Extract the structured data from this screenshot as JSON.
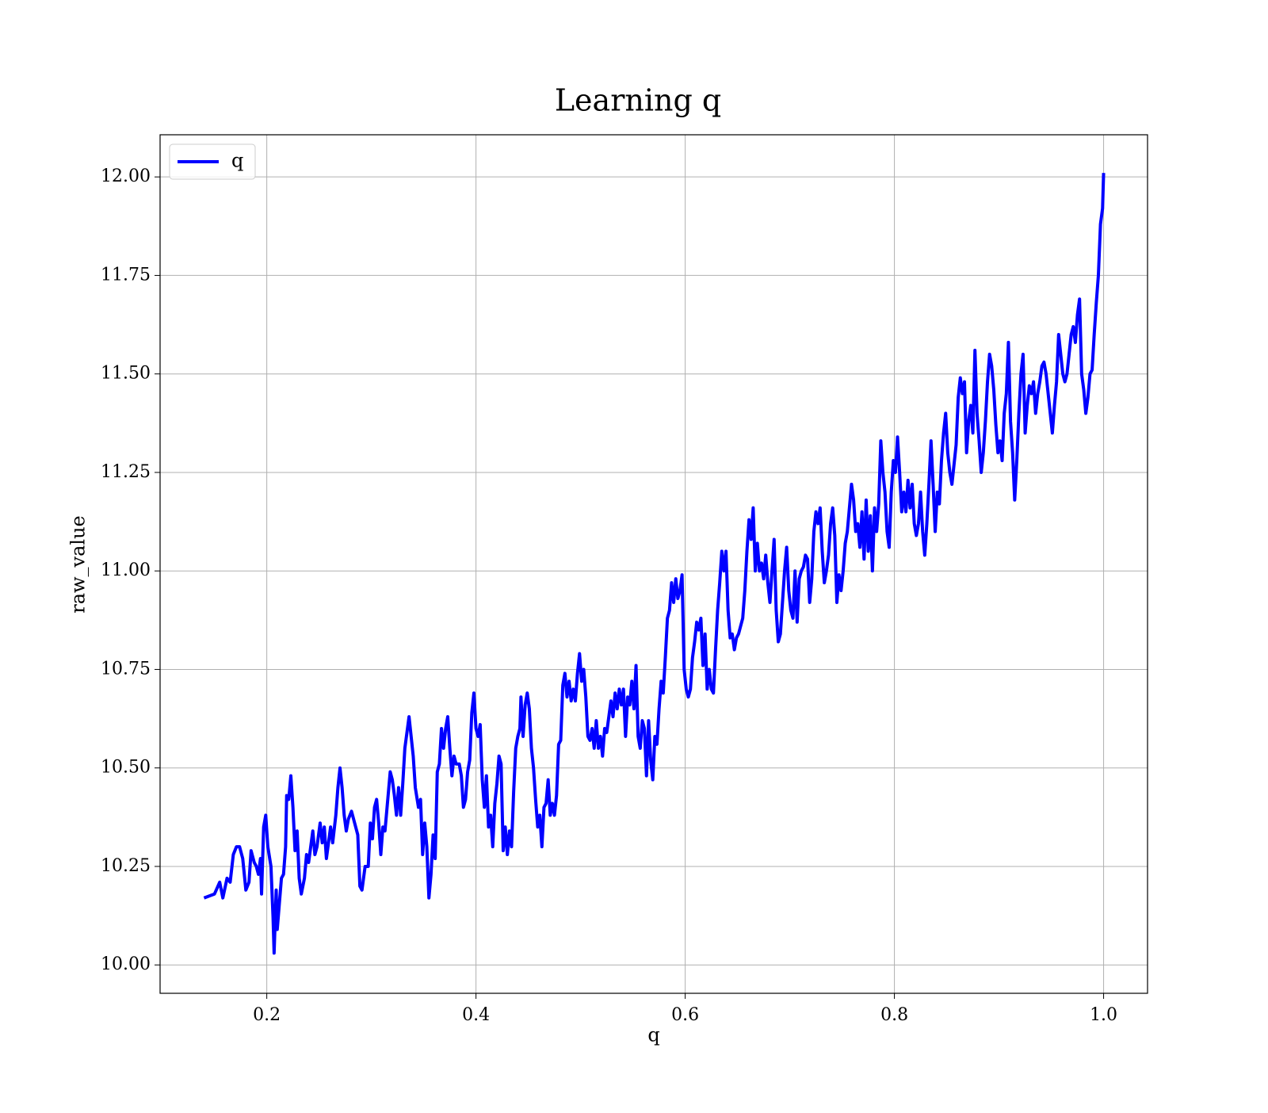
{
  "chart_data": {
    "type": "line",
    "title": "Learning q",
    "xlabel": "q",
    "ylabel": "raw_value",
    "x": [
      0.14,
      0.15,
      0.155,
      0.158,
      0.162,
      0.165,
      0.168,
      0.171,
      0.174,
      0.177,
      0.18,
      0.183,
      0.185,
      0.188,
      0.19,
      0.192,
      0.194,
      0.195,
      0.197,
      0.199,
      0.201,
      0.204,
      0.206,
      0.207,
      0.209,
      0.21,
      0.214,
      0.216,
      0.218,
      0.219,
      0.221,
      0.223,
      0.225,
      0.227,
      0.229,
      0.231,
      0.233,
      0.236,
      0.238,
      0.24,
      0.242,
      0.244,
      0.246,
      0.248,
      0.251,
      0.253,
      0.255,
      0.257,
      0.259,
      0.261,
      0.263,
      0.266,
      0.268,
      0.27,
      0.272,
      0.274,
      0.276,
      0.278,
      0.281,
      0.284,
      0.287,
      0.289,
      0.291,
      0.294,
      0.297,
      0.299,
      0.301,
      0.303,
      0.305,
      0.307,
      0.309,
      0.311,
      0.313,
      0.315,
      0.318,
      0.32,
      0.322,
      0.324,
      0.326,
      0.328,
      0.33,
      0.332,
      0.334,
      0.336,
      0.338,
      0.34,
      0.342,
      0.345,
      0.347,
      0.349,
      0.351,
      0.353,
      0.355,
      0.357,
      0.359,
      0.361,
      0.363,
      0.365,
      0.367,
      0.369,
      0.371,
      0.373,
      0.375,
      0.377,
      0.379,
      0.381,
      0.384,
      0.386,
      0.388,
      0.39,
      0.392,
      0.394,
      0.396,
      0.398,
      0.4,
      0.402,
      0.404,
      0.406,
      0.408,
      0.41,
      0.412,
      0.414,
      0.416,
      0.418,
      0.42,
      0.422,
      0.424,
      0.426,
      0.428,
      0.43,
      0.432,
      0.434,
      0.436,
      0.438,
      0.44,
      0.442,
      0.443,
      0.445,
      0.447,
      0.449,
      0.451,
      0.453,
      0.455,
      0.457,
      0.459,
      0.461,
      0.463,
      0.465,
      0.467,
      0.469,
      0.471,
      0.473,
      0.475,
      0.477,
      0.479,
      0.481,
      0.483,
      0.485,
      0.487,
      0.489,
      0.491,
      0.493,
      0.495,
      0.497,
      0.499,
      0.501,
      0.503,
      0.505,
      0.507,
      0.509,
      0.511,
      0.513,
      0.515,
      0.517,
      0.519,
      0.521,
      0.523,
      0.525,
      0.527,
      0.529,
      0.531,
      0.533,
      0.535,
      0.537,
      0.539,
      0.541,
      0.543,
      0.545,
      0.547,
      0.549,
      0.551,
      0.553,
      0.555,
      0.557,
      0.559,
      0.561,
      0.563,
      0.565,
      0.567,
      0.569,
      0.571,
      0.573,
      0.575,
      0.577,
      0.579,
      0.581,
      0.583,
      0.585,
      0.587,
      0.589,
      0.591,
      0.593,
      0.595,
      0.597,
      0.599,
      0.601,
      0.603,
      0.605,
      0.607,
      0.609,
      0.611,
      0.613,
      0.615,
      0.617,
      0.619,
      0.621,
      0.623,
      0.625,
      0.627,
      0.629,
      0.631,
      0.633,
      0.635,
      0.637,
      0.639,
      0.641,
      0.643,
      0.645,
      0.647,
      0.649,
      0.651,
      0.653,
      0.655,
      0.657,
      0.659,
      0.661,
      0.663,
      0.665,
      0.667,
      0.669,
      0.671,
      0.673,
      0.675,
      0.677,
      0.679,
      0.681,
      0.683,
      0.685,
      0.687,
      0.689,
      0.691,
      0.693,
      0.695,
      0.697,
      0.699,
      0.701,
      0.703,
      0.705,
      0.707,
      0.709,
      0.711,
      0.713,
      0.715,
      0.717,
      0.719,
      0.721,
      0.723,
      0.725,
      0.727,
      0.729,
      0.731,
      0.733,
      0.735,
      0.737,
      0.739,
      0.741,
      0.743,
      0.745,
      0.747,
      0.749,
      0.751,
      0.753,
      0.755,
      0.757,
      0.759,
      0.761,
      0.763,
      0.765,
      0.767,
      0.769,
      0.771,
      0.773,
      0.775,
      0.777,
      0.779,
      0.781,
      0.783,
      0.785,
      0.787,
      0.789,
      0.791,
      0.793,
      0.795,
      0.797,
      0.799,
      0.801,
      0.803,
      0.805,
      0.807,
      0.809,
      0.811,
      0.813,
      0.815,
      0.817,
      0.819,
      0.821,
      0.823,
      0.825,
      0.827,
      0.829,
      0.831,
      0.833,
      0.835,
      0.837,
      0.839,
      0.841,
      0.843,
      0.845,
      0.847,
      0.849,
      0.851,
      0.853,
      0.855,
      0.857,
      0.859,
      0.861,
      0.863,
      0.865,
      0.867,
      0.869,
      0.871,
      0.873,
      0.875,
      0.877,
      0.879,
      0.881,
      0.883,
      0.885,
      0.887,
      0.889,
      0.891,
      0.893,
      0.895,
      0.897,
      0.899,
      0.901,
      0.903,
      0.905,
      0.907,
      0.909,
      0.911,
      0.913,
      0.915,
      0.917,
      0.919,
      0.921,
      0.923,
      0.925,
      0.927,
      0.929,
      0.931,
      0.933,
      0.935,
      0.937,
      0.939,
      0.941,
      0.943,
      0.945,
      0.947,
      0.949,
      0.951,
      0.953,
      0.955,
      0.957,
      0.959,
      0.961,
      0.963,
      0.965,
      0.967,
      0.969,
      0.971,
      0.973,
      0.975,
      0.977,
      0.979,
      0.981,
      0.983,
      0.985,
      0.987,
      0.989,
      0.991,
      0.993,
      0.995,
      0.997,
      0.999,
      1.0
    ],
    "series": [
      {
        "name": "q",
        "color": "#0000ff",
        "values": [
          10.17,
          10.18,
          10.21,
          10.17,
          10.22,
          10.21,
          10.28,
          10.3,
          10.3,
          10.27,
          10.19,
          10.21,
          10.29,
          10.26,
          10.25,
          10.23,
          10.27,
          10.18,
          10.35,
          10.38,
          10.3,
          10.25,
          10.12,
          10.03,
          10.19,
          10.09,
          10.22,
          10.23,
          10.3,
          10.43,
          10.42,
          10.48,
          10.4,
          10.29,
          10.34,
          10.22,
          10.18,
          10.22,
          10.28,
          10.26,
          10.3,
          10.34,
          10.28,
          10.3,
          10.36,
          10.31,
          10.35,
          10.27,
          10.31,
          10.35,
          10.31,
          10.38,
          10.45,
          10.5,
          10.45,
          10.38,
          10.34,
          10.37,
          10.39,
          10.36,
          10.33,
          10.2,
          10.19,
          10.25,
          10.25,
          10.36,
          10.32,
          10.4,
          10.42,
          10.36,
          10.28,
          10.35,
          10.34,
          10.4,
          10.49,
          10.47,
          10.43,
          10.38,
          10.45,
          10.38,
          10.46,
          10.55,
          10.59,
          10.63,
          10.58,
          10.53,
          10.45,
          10.4,
          10.42,
          10.28,
          10.36,
          10.3,
          10.17,
          10.23,
          10.33,
          10.27,
          10.49,
          10.51,
          10.6,
          10.55,
          10.6,
          10.63,
          10.55,
          10.48,
          10.53,
          10.51,
          10.51,
          10.48,
          10.4,
          10.42,
          10.49,
          10.52,
          10.64,
          10.69,
          10.6,
          10.58,
          10.61,
          10.47,
          10.4,
          10.48,
          10.35,
          10.38,
          10.3,
          10.41,
          10.46,
          10.53,
          10.51,
          10.29,
          10.35,
          10.28,
          10.34,
          10.3,
          10.44,
          10.55,
          10.58,
          10.6,
          10.68,
          10.58,
          10.66,
          10.69,
          10.65,
          10.55,
          10.5,
          10.42,
          10.35,
          10.38,
          10.3,
          10.4,
          10.41,
          10.47,
          10.38,
          10.41,
          10.38,
          10.43,
          10.56,
          10.57,
          10.71,
          10.74,
          10.68,
          10.72,
          10.67,
          10.7,
          10.67,
          10.74,
          10.79,
          10.72,
          10.75,
          10.68,
          10.58,
          10.57,
          10.6,
          10.55,
          10.62,
          10.55,
          10.58,
          10.53,
          10.6,
          10.59,
          10.63,
          10.67,
          10.63,
          10.69,
          10.65,
          10.7,
          10.66,
          10.7,
          10.58,
          10.68,
          10.66,
          10.72,
          10.65,
          10.76,
          10.58,
          10.55,
          10.62,
          10.6,
          10.48,
          10.62,
          10.52,
          10.47,
          10.58,
          10.56,
          10.65,
          10.72,
          10.69,
          10.78,
          10.88,
          10.9,
          10.97,
          10.92,
          10.98,
          10.93,
          10.95,
          10.99,
          10.75,
          10.7,
          10.68,
          10.7,
          10.78,
          10.82,
          10.87,
          10.85,
          10.88,
          10.76,
          10.84,
          10.7,
          10.75,
          10.7,
          10.69,
          10.8,
          10.9,
          10.97,
          11.05,
          11.0,
          11.05,
          10.9,
          10.83,
          10.84,
          10.8,
          10.83,
          10.84,
          10.86,
          10.88,
          10.95,
          11.05,
          11.13,
          11.08,
          11.16,
          11.0,
          11.07,
          11.0,
          11.02,
          10.98,
          11.04,
          10.97,
          10.92,
          11.0,
          11.08,
          10.9,
          10.82,
          10.84,
          10.92,
          11.0,
          11.06,
          10.95,
          10.9,
          10.88,
          11.0,
          10.87,
          10.98,
          11.0,
          11.01,
          11.04,
          11.03,
          10.92,
          10.98,
          11.1,
          11.15,
          11.12,
          11.16,
          11.05,
          10.97,
          11.0,
          11.04,
          11.12,
          11.16,
          11.09,
          10.92,
          10.99,
          10.95,
          11.0,
          11.07,
          11.1,
          11.16,
          11.22,
          11.18,
          11.1,
          11.12,
          11.06,
          11.15,
          11.03,
          11.18,
          11.05,
          11.14,
          11.0,
          11.16,
          11.1,
          11.17,
          11.33,
          11.25,
          11.2,
          11.1,
          11.06,
          11.2,
          11.28,
          11.25,
          11.34,
          11.25,
          11.15,
          11.2,
          11.15,
          11.23,
          11.16,
          11.22,
          11.12,
          11.09,
          11.12,
          11.2,
          11.1,
          11.04,
          11.12,
          11.22,
          11.33,
          11.22,
          11.1,
          11.2,
          11.17,
          11.28,
          11.35,
          11.4,
          11.3,
          11.25,
          11.22,
          11.27,
          11.32,
          11.44,
          11.49,
          11.45,
          11.48,
          11.3,
          11.38,
          11.42,
          11.35,
          11.56,
          11.4,
          11.33,
          11.25,
          11.3,
          11.38,
          11.48,
          11.55,
          11.52,
          11.46,
          11.37,
          11.3,
          11.33,
          11.28,
          11.4,
          11.45,
          11.58,
          11.38,
          11.3,
          11.18,
          11.28,
          11.4,
          11.5,
          11.55,
          11.35,
          11.42,
          11.47,
          11.45,
          11.48,
          11.4,
          11.45,
          11.48,
          11.52,
          11.53,
          11.5,
          11.45,
          11.4,
          11.35,
          11.42,
          11.48,
          11.6,
          11.55,
          11.5,
          11.48,
          11.5,
          11.55,
          11.6,
          11.62,
          11.58,
          11.65,
          11.69,
          11.5,
          11.46,
          11.4,
          11.44,
          11.5,
          11.51,
          11.6,
          11.68,
          11.75,
          11.88,
          11.92,
          12.01
        ]
      }
    ],
    "xlim": [
      0.098,
      1.042
    ],
    "ylim": [
      9.928,
      12.107
    ],
    "xticks": [
      0.2,
      0.4,
      0.6,
      0.8,
      {
        "value": 1,
        "label": "1.0"
      }
    ],
    "yticks": [
      {
        "value": 10,
        "label": "10.00"
      },
      10.25,
      {
        "value": 10.5,
        "label": "10.50"
      },
      10.75,
      {
        "value": 11,
        "label": "11.00"
      },
      11.25,
      {
        "value": 11.5,
        "label": "11.50"
      },
      11.75,
      {
        "value": 12,
        "label": "12.00"
      }
    ],
    "grid": true,
    "legend": "upper left"
  }
}
